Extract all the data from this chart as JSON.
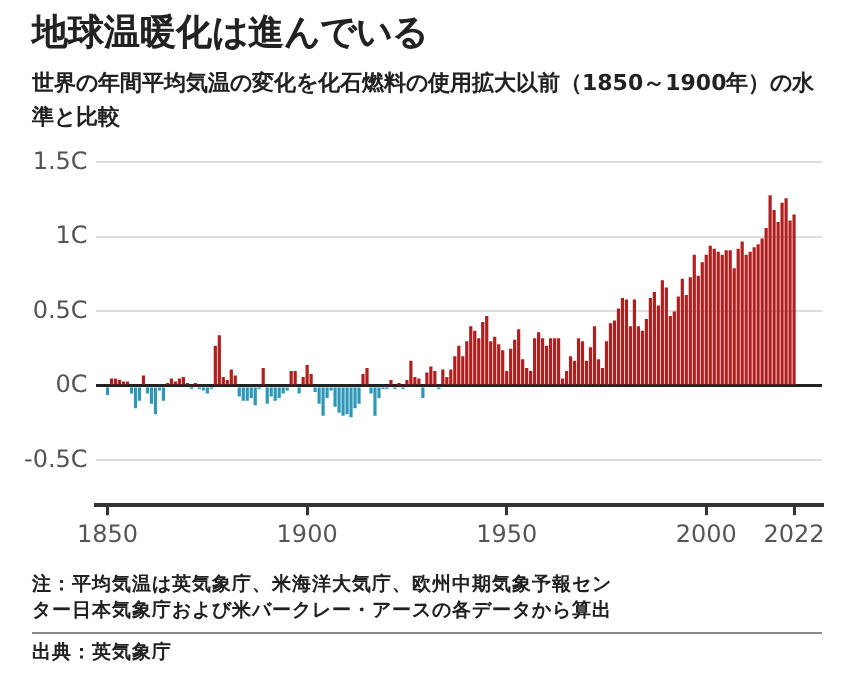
{
  "chart_data": {
    "type": "bar",
    "title": "地球温暖化は進んでいる",
    "subtitle": "世界の年間平均気温の変化を化石燃料の使用拡大以前（1850～1900年）の水準と比較",
    "x": [
      1850,
      1851,
      1852,
      1853,
      1854,
      1855,
      1856,
      1857,
      1858,
      1859,
      1860,
      1861,
      1862,
      1863,
      1864,
      1865,
      1866,
      1867,
      1868,
      1869,
      1870,
      1871,
      1872,
      1873,
      1874,
      1875,
      1876,
      1877,
      1878,
      1879,
      1880,
      1881,
      1882,
      1883,
      1884,
      1885,
      1886,
      1887,
      1888,
      1889,
      1890,
      1891,
      1892,
      1893,
      1894,
      1895,
      1896,
      1897,
      1898,
      1899,
      1900,
      1901,
      1902,
      1903,
      1904,
      1905,
      1906,
      1907,
      1908,
      1909,
      1910,
      1911,
      1912,
      1913,
      1914,
      1915,
      1916,
      1917,
      1918,
      1919,
      1920,
      1921,
      1922,
      1923,
      1924,
      1925,
      1926,
      1927,
      1928,
      1929,
      1930,
      1931,
      1932,
      1933,
      1934,
      1935,
      1936,
      1937,
      1938,
      1939,
      1940,
      1941,
      1942,
      1943,
      1944,
      1945,
      1946,
      1947,
      1948,
      1949,
      1950,
      1951,
      1952,
      1953,
      1954,
      1955,
      1956,
      1957,
      1958,
      1959,
      1960,
      1961,
      1962,
      1963,
      1964,
      1965,
      1966,
      1967,
      1968,
      1969,
      1970,
      1971,
      1972,
      1973,
      1974,
      1975,
      1976,
      1977,
      1978,
      1979,
      1980,
      1981,
      1982,
      1983,
      1984,
      1985,
      1986,
      1987,
      1988,
      1989,
      1990,
      1991,
      1992,
      1993,
      1994,
      1995,
      1996,
      1997,
      1998,
      1999,
      2000,
      2001,
      2002,
      2003,
      2004,
      2005,
      2006,
      2007,
      2008,
      2009,
      2010,
      2011,
      2012,
      2013,
      2014,
      2015,
      2016,
      2017,
      2018,
      2019,
      2020,
      2021,
      2022
    ],
    "values": [
      -0.06,
      0.05,
      0.05,
      0.04,
      0.03,
      0.03,
      -0.05,
      -0.15,
      -0.1,
      0.07,
      -0.05,
      -0.12,
      -0.19,
      -0.03,
      -0.1,
      0.02,
      0.05,
      0.03,
      0.05,
      0.06,
      0.01,
      -0.01,
      0.01,
      -0.01,
      -0.03,
      -0.05,
      -0.02,
      0.27,
      0.34,
      0.06,
      0.04,
      0.11,
      0.07,
      -0.07,
      -0.1,
      -0.1,
      -0.08,
      -0.13,
      -0.02,
      0.12,
      -0.12,
      -0.07,
      -0.1,
      -0.08,
      -0.05,
      -0.03,
      0.1,
      0.1,
      -0.05,
      0.06,
      0.14,
      0.08,
      -0.04,
      -0.12,
      -0.2,
      -0.08,
      -0.03,
      -0.14,
      -0.18,
      -0.2,
      -0.19,
      -0.21,
      -0.15,
      -0.12,
      0.08,
      0.12,
      -0.05,
      -0.2,
      -0.08,
      -0.02,
      -0.01,
      0.04,
      -0.02,
      0.01,
      -0.01,
      0.04,
      0.17,
      0.06,
      0.05,
      -0.08,
      0.09,
      0.13,
      0.1,
      -0.01,
      0.11,
      0.06,
      0.11,
      0.2,
      0.27,
      0.2,
      0.3,
      0.4,
      0.37,
      0.32,
      0.43,
      0.47,
      0.3,
      0.33,
      0.28,
      0.24,
      0.1,
      0.25,
      0.31,
      0.38,
      0.18,
      0.12,
      0.1,
      0.32,
      0.36,
      0.32,
      0.27,
      0.32,
      0.32,
      0.32,
      0.05,
      0.1,
      0.2,
      0.17,
      0.32,
      0.3,
      0.17,
      0.26,
      0.4,
      0.18,
      0.12,
      0.3,
      0.42,
      0.44,
      0.52,
      0.59,
      0.58,
      0.4,
      0.58,
      0.4,
      0.37,
      0.45,
      0.59,
      0.63,
      0.54,
      0.71,
      0.66,
      0.47,
      0.5,
      0.6,
      0.72,
      0.61,
      0.73,
      0.88,
      0.74,
      0.83,
      0.88,
      0.94,
      0.92,
      0.9,
      0.88,
      0.91,
      0.91,
      0.79,
      0.92,
      0.97,
      0.88,
      0.9,
      0.93,
      0.95,
      0.99,
      1.06,
      1.28,
      1.18,
      1.1,
      1.23,
      1.26,
      1.11,
      1.15
    ],
    "colors": [
      "#2e97b8",
      "#b01e1e",
      "#b01e1e",
      "#b01e1e",
      "#b01e1e",
      "#b01e1e",
      "#2e97b8",
      "#2e97b8",
      "#2e97b8",
      "#b01e1e",
      "#2e97b8",
      "#2e97b8",
      "#2e97b8",
      "#2e97b8",
      "#2e97b8",
      "#b01e1e",
      "#b01e1e",
      "#b01e1e",
      "#b01e1e",
      "#b01e1e",
      "#b01e1e",
      "#2e97b8",
      "#b01e1e",
      "#2e97b8",
      "#2e97b8",
      "#2e97b8",
      "#2e97b8",
      "#b01e1e",
      "#b01e1e",
      "#b01e1e",
      "#b01e1e",
      "#b01e1e",
      "#b01e1e",
      "#2e97b8",
      "#2e97b8",
      "#2e97b8",
      "#2e97b8",
      "#2e97b8",
      "#2e97b8",
      "#b01e1e",
      "#2e97b8",
      "#2e97b8",
      "#2e97b8",
      "#2e97b8",
      "#2e97b8",
      "#2e97b8",
      "#b01e1e",
      "#b01e1e",
      "#2e97b8",
      "#b01e1e",
      "#b01e1e",
      "#b01e1e",
      "#2e97b8",
      "#2e97b8",
      "#2e97b8",
      "#2e97b8",
      "#2e97b8",
      "#2e97b8",
      "#2e97b8",
      "#2e97b8",
      "#2e97b8",
      "#2e97b8",
      "#2e97b8",
      "#2e97b8",
      "#b01e1e",
      "#b01e1e",
      "#2e97b8",
      "#2e97b8",
      "#2e97b8",
      "#2e97b8",
      "#2e97b8",
      "#b01e1e",
      "#2e97b8",
      "#b01e1e",
      "#2e97b8",
      "#b01e1e",
      "#b01e1e",
      "#b01e1e",
      "#b01e1e",
      "#2e97b8",
      "#b01e1e",
      "#b01e1e",
      "#b01e1e",
      "#2e97b8",
      "#b01e1e",
      "#b01e1e",
      "#b01e1e",
      "#b01e1e",
      "#b01e1e",
      "#b01e1e",
      "#b01e1e",
      "#b01e1e",
      "#b01e1e",
      "#b01e1e",
      "#b01e1e",
      "#b01e1e",
      "#b01e1e",
      "#b01e1e",
      "#b01e1e",
      "#b01e1e",
      "#b01e1e",
      "#b01e1e",
      "#b01e1e",
      "#b01e1e",
      "#b01e1e",
      "#b01e1e",
      "#b01e1e",
      "#b01e1e",
      "#b01e1e",
      "#b01e1e",
      "#b01e1e",
      "#b01e1e",
      "#b01e1e",
      "#b01e1e",
      "#b01e1e",
      "#b01e1e",
      "#b01e1e",
      "#b01e1e",
      "#b01e1e",
      "#b01e1e",
      "#b01e1e",
      "#b01e1e",
      "#b01e1e",
      "#b01e1e",
      "#b01e1e",
      "#b01e1e",
      "#b01e1e",
      "#b01e1e",
      "#b01e1e",
      "#b01e1e",
      "#b01e1e",
      "#b01e1e",
      "#b01e1e",
      "#b01e1e",
      "#b01e1e",
      "#b01e1e",
      "#b01e1e",
      "#b01e1e",
      "#b01e1e",
      "#b01e1e",
      "#b01e1e",
      "#b01e1e",
      "#b01e1e",
      "#b01e1e",
      "#b01e1e",
      "#b01e1e",
      "#b01e1e",
      "#b01e1e",
      "#b01e1e",
      "#b01e1e",
      "#b01e1e",
      "#b01e1e",
      "#b01e1e",
      "#b01e1e",
      "#b01e1e",
      "#b01e1e",
      "#b01e1e",
      "#b01e1e",
      "#b01e1e",
      "#b01e1e",
      "#b01e1e",
      "#b01e1e",
      "#b01e1e",
      "#b01e1e",
      "#b01e1e",
      "#b01e1e",
      "#b01e1e",
      "#b01e1e",
      "#b01e1e",
      "#b01e1e",
      "#b01e1e",
      "#b01e1e",
      "#b01e1e"
    ],
    "xlim": [
      1847,
      2029
    ],
    "xticks": [
      1850,
      1900,
      1950,
      2000,
      2022
    ],
    "ylim": [
      -0.8,
      1.5
    ],
    "yticks": [
      {
        "value": -0.5,
        "label": "-0.5C"
      },
      {
        "value": 0,
        "label": "0C"
      },
      {
        "value": 0.5,
        "label": "0.5C"
      },
      {
        "value": 1,
        "label": "1C"
      },
      {
        "value": 1.5,
        "label": "1.5C"
      }
    ],
    "grid": "y",
    "annotations": [
      "注：平均気温は英気象庁、米海洋大気庁、欧州中期気象予報センター日本気象庁および米バークレー・アースの各データから算出",
      "出典：英気象庁"
    ]
  }
}
